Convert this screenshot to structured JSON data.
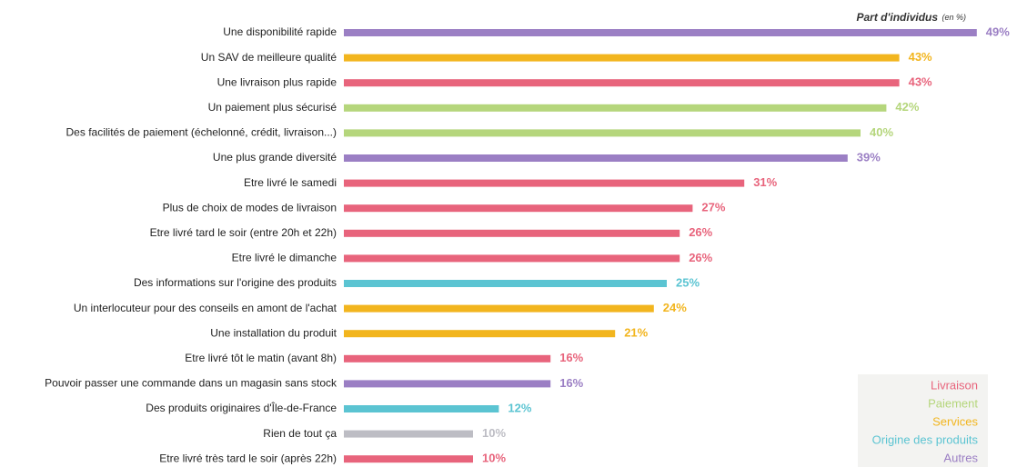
{
  "chart_data": {
    "type": "bar",
    "orientation": "horizontal",
    "axis_title": "Part d'individus",
    "axis_unit": "(en %)",
    "categories": [
      "Une disponibilité rapide",
      "Un SAV de meilleure qualité",
      "Une livraison plus rapide",
      "Un paiement plus sécurisé",
      "Des facilités de paiement (échelonné, crédit, livraison...)",
      "Une plus grande diversité",
      "Etre livré le samedi",
      "Plus de choix de modes de livraison",
      "Etre livré tard le soir (entre 20h et 22h)",
      "Etre livré le dimanche",
      "Des informations sur l'origine des produits",
      "Un interlocuteur pour des conseils en amont de l'achat",
      "Une installation du produit",
      "Etre livré tôt le matin (avant 8h)",
      "Pouvoir passer une commande dans un magasin sans stock",
      "Des produits originaires d'Île-de-France",
      "Rien de tout ça",
      "Etre livré très tard le soir (après 22h)"
    ],
    "series": [
      {
        "name": "Livraison",
        "color": "#e8647c",
        "values": [
          null,
          null,
          43,
          null,
          null,
          null,
          31,
          27,
          26,
          26,
          null,
          null,
          null,
          16,
          null,
          null,
          null,
          10
        ],
        "value_labels": [
          null,
          null,
          "43%",
          null,
          null,
          null,
          "31%",
          "27%",
          "26%",
          "26%",
          null,
          null,
          null,
          "16%",
          null,
          null,
          null,
          "10%"
        ]
      },
      {
        "name": "Paiement",
        "color": "#b5d67c",
        "values": [
          null,
          null,
          null,
          42,
          40,
          null,
          null,
          null,
          null,
          null,
          null,
          null,
          null,
          null,
          null,
          null,
          null,
          null
        ],
        "value_labels": [
          null,
          null,
          null,
          "42%",
          "40%",
          null,
          null,
          null,
          null,
          null,
          null,
          null,
          null,
          null,
          null,
          null,
          null,
          null
        ]
      },
      {
        "name": "Services",
        "color": "#f2b51e",
        "values": [
          null,
          43,
          null,
          null,
          null,
          null,
          null,
          null,
          null,
          null,
          null,
          24,
          21,
          null,
          null,
          null,
          null,
          null
        ],
        "value_labels": [
          null,
          "43%",
          null,
          null,
          null,
          null,
          null,
          null,
          null,
          null,
          null,
          "24%",
          "21%",
          null,
          null,
          null,
          null,
          null
        ]
      },
      {
        "name": "Origine des produits",
        "color": "#5bc4d2",
        "values": [
          null,
          null,
          null,
          null,
          null,
          null,
          null,
          null,
          null,
          null,
          25,
          null,
          null,
          null,
          null,
          12,
          null,
          null
        ],
        "value_labels": [
          null,
          null,
          null,
          null,
          null,
          null,
          null,
          null,
          null,
          null,
          "25%",
          null,
          null,
          null,
          null,
          "12%",
          null,
          null
        ]
      },
      {
        "name": "Autres",
        "color": "#9b7fc4",
        "values": [
          49,
          null,
          null,
          null,
          null,
          39,
          null,
          null,
          null,
          null,
          null,
          null,
          null,
          null,
          16,
          null,
          null,
          null
        ],
        "value_labels": [
          "49%",
          null,
          null,
          null,
          null,
          "39%",
          null,
          null,
          null,
          null,
          null,
          null,
          null,
          null,
          "16%",
          null,
          null,
          null
        ]
      },
      {
        "color": "#bdbdc4",
        "values": [
          null,
          null,
          null,
          null,
          null,
          null,
          null,
          null,
          null,
          null,
          null,
          null,
          null,
          null,
          null,
          null,
          10,
          null
        ],
        "value_labels": [
          null,
          null,
          null,
          null,
          null,
          null,
          null,
          null,
          null,
          null,
          null,
          null,
          null,
          null,
          null,
          null,
          "10%",
          null
        ]
      }
    ],
    "legend": "bottom-right"
  }
}
